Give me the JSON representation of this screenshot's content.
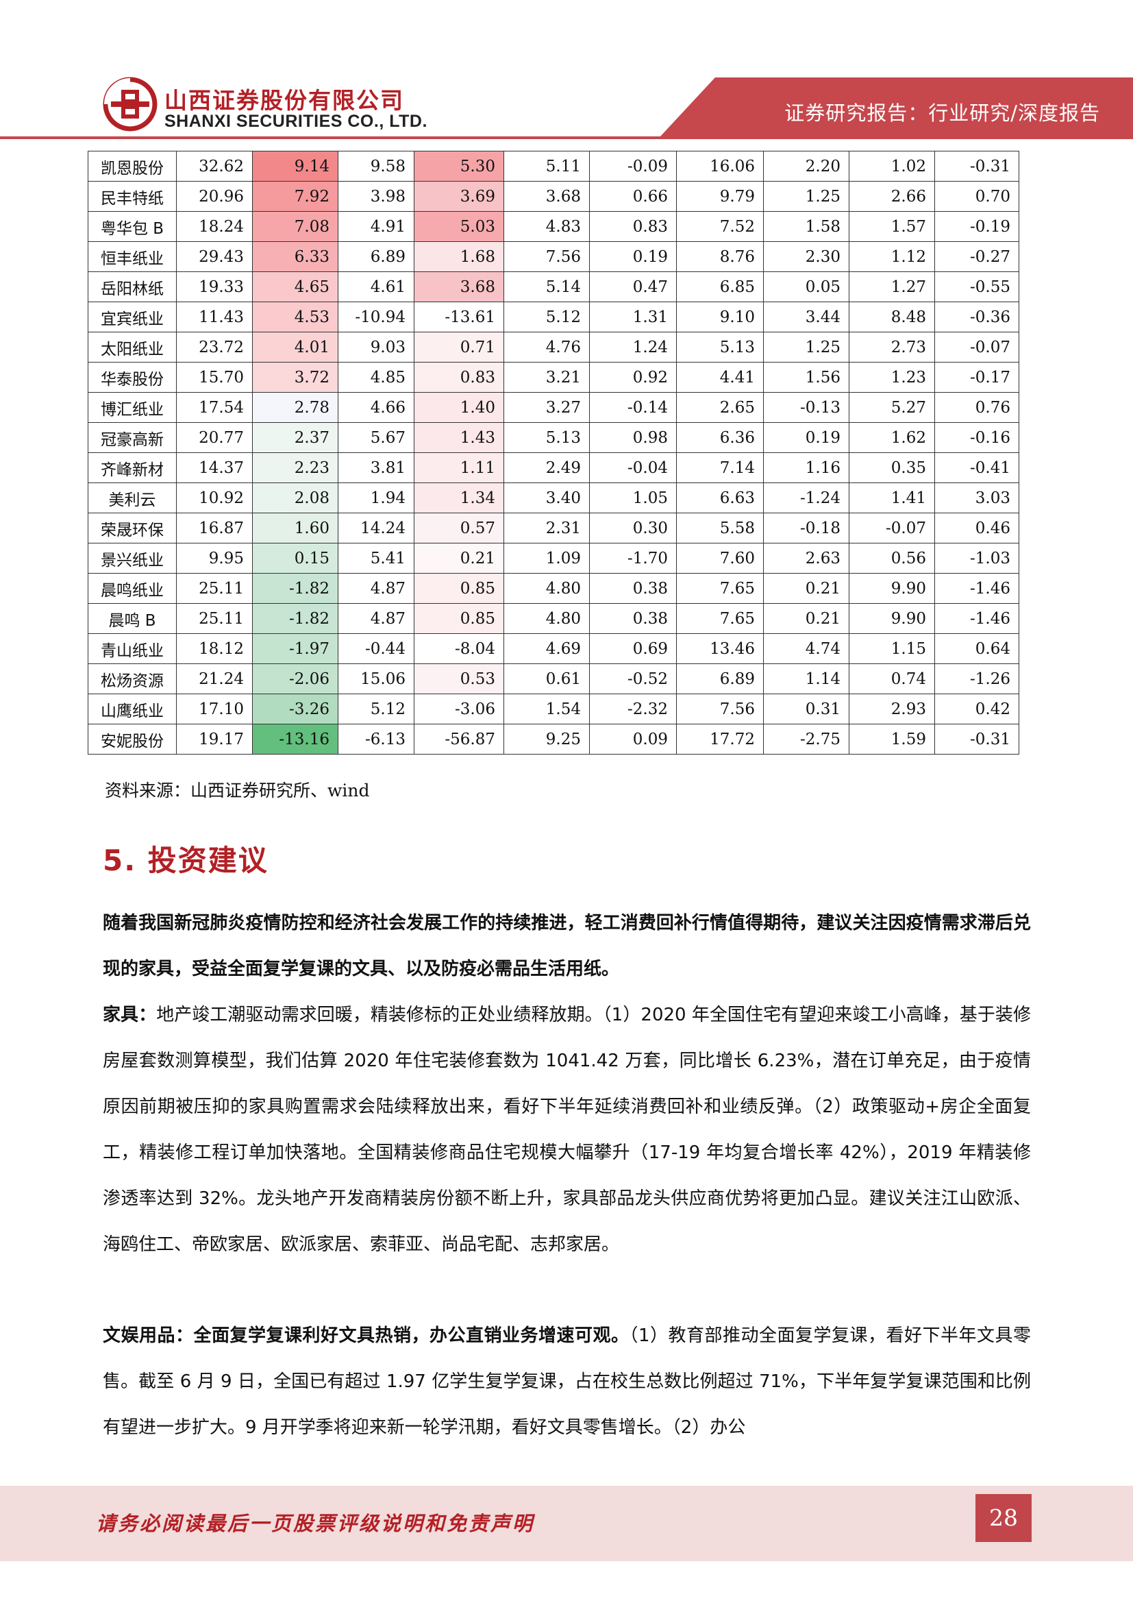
{
  "header": {
    "company_cn": "山西证券股份有限公司",
    "company_en": "SHANXI SECURITIES CO., LTD.",
    "report_type": "证券研究报告：行业研究/深度报告"
  },
  "table": {
    "rows": [
      {
        "name": "凯恩股份",
        "v": [
          "32.62",
          "9.14",
          "9.58",
          "5.30",
          "5.11",
          "-0.09",
          "16.06",
          "2.20",
          "1.02",
          "-0.31"
        ],
        "c2bg": "#f3888b",
        "c4bg": "#f5a3a7"
      },
      {
        "name": "民丰特纸",
        "v": [
          "20.96",
          "7.92",
          "3.98",
          "3.69",
          "3.68",
          "0.66",
          "9.79",
          "1.25",
          "2.66",
          "0.70"
        ],
        "c2bg": "#f59a9d",
        "c4bg": "#f8c3c6"
      },
      {
        "name": "粤华包 B",
        "v": [
          "18.24",
          "7.08",
          "4.91",
          "5.03",
          "4.83",
          "0.83",
          "7.52",
          "1.58",
          "1.57",
          "-0.19"
        ],
        "c2bg": "#f6a6a9",
        "c4bg": "#f6aaae"
      },
      {
        "name": "恒丰纸业",
        "v": [
          "29.43",
          "6.33",
          "6.89",
          "1.68",
          "7.56",
          "0.19",
          "8.76",
          "2.30",
          "1.12",
          "-0.27"
        ],
        "c2bg": "#f7b1b4",
        "c4bg": "#fbe5e7"
      },
      {
        "name": "岳阳林纸",
        "v": [
          "19.33",
          "4.65",
          "4.61",
          "3.68",
          "5.14",
          "0.47",
          "6.85",
          "0.05",
          "1.27",
          "-0.55"
        ],
        "c2bg": "#fac8ca",
        "c4bg": "#f8c3c6"
      },
      {
        "name": "宜宾纸业",
        "v": [
          "11.43",
          "4.53",
          "-10.94",
          "-13.61",
          "5.12",
          "1.31",
          "9.10",
          "3.44",
          "8.48",
          "-0.36"
        ],
        "c2bg": "#facacc",
        "c4bg": ""
      },
      {
        "name": "太阳纸业",
        "v": [
          "23.72",
          "4.01",
          "9.03",
          "0.71",
          "4.76",
          "1.24",
          "5.13",
          "1.25",
          "2.73",
          "-0.07"
        ],
        "c2bg": "#fbd3d5",
        "c4bg": "#fdf0f1"
      },
      {
        "name": "华泰股份",
        "v": [
          "15.70",
          "3.72",
          "4.85",
          "0.83",
          "3.21",
          "0.92",
          "4.41",
          "1.56",
          "1.23",
          "-0.17"
        ],
        "c2bg": "#fbd8da",
        "c4bg": "#fdeeef"
      },
      {
        "name": "博汇纸业",
        "v": [
          "17.54",
          "2.78",
          "4.66",
          "1.40",
          "3.27",
          "-0.14",
          "2.65",
          "-0.13",
          "5.27",
          "0.76"
        ],
        "c2bg": "#f4f6fb",
        "c4bg": "#fce8ea"
      },
      {
        "name": "冠豪高新",
        "v": [
          "20.77",
          "2.37",
          "5.67",
          "1.43",
          "5.13",
          "0.98",
          "6.36",
          "0.19",
          "1.62",
          "-0.16"
        ],
        "c2bg": "#eef6f2",
        "c4bg": "#fce8ea"
      },
      {
        "name": "齐峰新材",
        "v": [
          "14.37",
          "2.23",
          "3.81",
          "1.11",
          "2.49",
          "-0.04",
          "7.14",
          "1.16",
          "0.35",
          "-0.41"
        ],
        "c2bg": "#ecf5f0",
        "c4bg": "#fdecee"
      },
      {
        "name": "美利云",
        "v": [
          "10.92",
          "2.08",
          "1.94",
          "1.34",
          "3.40",
          "1.05",
          "6.63",
          "-1.24",
          "1.41",
          "3.03"
        ],
        "c2bg": "#e9f4ee",
        "c4bg": "#fce9eb"
      },
      {
        "name": "荣晟环保",
        "v": [
          "16.87",
          "1.60",
          "14.24",
          "0.57",
          "2.31",
          "0.30",
          "5.58",
          "-0.18",
          "-0.07",
          "0.46"
        ],
        "c2bg": "#e3f1e9",
        "c4bg": "#fdf2f3"
      },
      {
        "name": "景兴纸业",
        "v": [
          "9.95",
          "0.15",
          "5.41",
          "0.21",
          "1.09",
          "-1.70",
          "7.60",
          "2.63",
          "0.56",
          "-1.03"
        ],
        "c2bg": "#d5ebde",
        "c4bg": "#fef7f8"
      },
      {
        "name": "晨鸣纸业",
        "v": [
          "25.11",
          "-1.82",
          "4.87",
          "0.85",
          "4.80",
          "0.38",
          "7.65",
          "0.21",
          "9.90",
          "-1.46"
        ],
        "c2bg": "#c7e5d2",
        "c4bg": "#fdeeef"
      },
      {
        "name": "晨鸣 B",
        "v": [
          "25.11",
          "-1.82",
          "4.87",
          "0.85",
          "4.80",
          "0.38",
          "7.65",
          "0.21",
          "9.90",
          "-1.46"
        ],
        "c2bg": "#c7e5d2",
        "c4bg": "#fdeeef"
      },
      {
        "name": "青山纸业",
        "v": [
          "18.12",
          "-1.97",
          "-0.44",
          "-8.04",
          "4.69",
          "0.69",
          "13.46",
          "4.74",
          "1.15",
          "0.64"
        ],
        "c2bg": "#c5e4d0",
        "c4bg": ""
      },
      {
        "name": "松炀资源",
        "v": [
          "21.24",
          "-2.06",
          "15.06",
          "0.53",
          "0.61",
          "-0.52",
          "6.89",
          "1.14",
          "0.74",
          "-1.26"
        ],
        "c2bg": "#c3e3cf",
        "c4bg": "#fdf2f3"
      },
      {
        "name": "山鹰纸业",
        "v": [
          "17.10",
          "-3.26",
          "5.12",
          "-3.06",
          "1.54",
          "-2.32",
          "7.56",
          "0.31",
          "2.93",
          "0.42"
        ],
        "c2bg": "#b1dcc0",
        "c4bg": ""
      },
      {
        "name": "安妮股份",
        "v": [
          "19.17",
          "-13.16",
          "-6.13",
          "-56.87",
          "9.25",
          "0.09",
          "17.72",
          "-2.75",
          "1.59",
          "-0.31"
        ],
        "c2bg": "#62bf7d",
        "c4bg": ""
      }
    ]
  },
  "source": {
    "label": "资料来源：山西证券研究所、",
    "en": "wind"
  },
  "section": {
    "title": "5. 投资建议"
  },
  "paragraphs": {
    "p1": "随着我国新冠肺炎疫情防控和经济社会发展工作的持续推进，轻工消费回补行情值得期待，建议关注因疫情需求滞后兑现的家具，受益全面复学复课的文具、以及防疫必需品生活用纸。",
    "p2_lead": "家具：",
    "p2": "地产竣工潮驱动需求回暖，精装修标的正处业绩释放期。（1）2020 年全国住宅有望迎来竣工小高峰，基于装修房屋套数测算模型，我们估算 2020 年住宅装修套数为 1041.42 万套，同比增长 6.23%，潜在订单充足，由于疫情原因前期被压抑的家具购置需求会陆续释放出来，看好下半年延续消费回补和业绩反弹。（2）政策驱动+房企全面复工，精装修工程订单加快落地。全国精装修商品住宅规模大幅攀升（17-19 年均复合增长率 42%），2019 年精装修渗透率达到 32%。龙头地产开发商精装房份额不断上升，家具部品龙头供应商优势将更加凸显。建议关注江山欧派、海鸥住工、帝欧家居、欧派家居、索菲亚、尚品宅配、志邦家居。",
    "p3_lead": "文娱用品：全面复学复课利好文具热销，办公直销业务增速可观。",
    "p3": "（1）教育部推动全面复学复课，看好下半年文具零售。截至 6 月 9 日，全国已有超过 1.97 亿学生复学复课，占在校生总数比例超过 71%，下半年复学复课范围和比例有望进一步扩大。9 月开学季将迎来新一轮学汛期，看好文具零售增长。（2）办公"
  },
  "footer": {
    "notice": "请务必阅读最后一页股票评级说明和免责声明",
    "page": "28"
  },
  "colors": {
    "brand_red": "#b32025",
    "banner_red": "#c6474c",
    "footer_bg": "#f2dcdc"
  }
}
